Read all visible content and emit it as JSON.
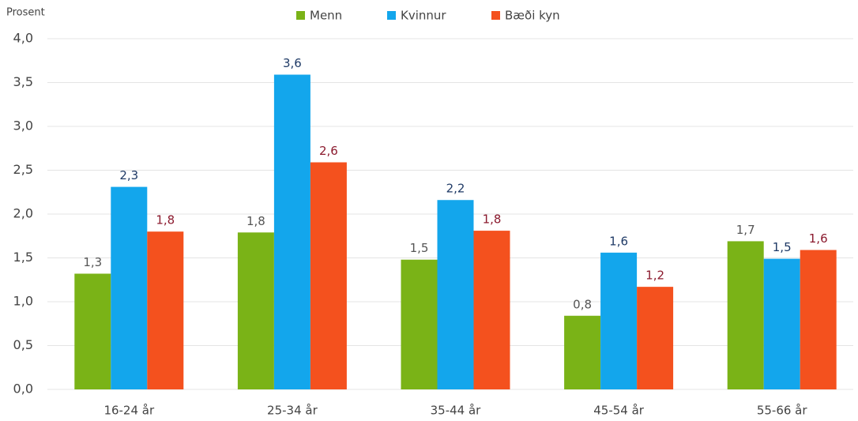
{
  "chart_data": {
    "type": "bar",
    "y_axis_label": "Prosent",
    "categories": [
      "16-24 år",
      "25-34 år",
      "35-44 år",
      "45-54 år",
      "55-66 år"
    ],
    "series": [
      {
        "name": "Menn",
        "color": "#7ab317",
        "label_color": "#555555",
        "values": [
          1.32,
          1.79,
          1.48,
          0.84,
          1.69
        ],
        "value_labels": [
          "1,3",
          "1,8",
          "1,5",
          "0,8",
          "1,7"
        ]
      },
      {
        "name": "Kvinnur",
        "color": "#13a6ec",
        "label_color": "#1f3a66",
        "values": [
          2.31,
          3.59,
          2.16,
          1.56,
          1.49
        ],
        "value_labels": [
          "2,3",
          "3,6",
          "2,2",
          "1,6",
          "1,5"
        ]
      },
      {
        "name": "Bæði kyn",
        "color": "#f4511e",
        "label_color": "#8b1a2e",
        "values": [
          1.8,
          2.59,
          1.81,
          1.17,
          1.59
        ],
        "value_labels": [
          "1,8",
          "2,6",
          "1,8",
          "1,2",
          "1,6"
        ]
      }
    ],
    "ylim": [
      0,
      4
    ],
    "yticks": [
      {
        "value": 0,
        "label": "0,0"
      },
      {
        "value": 0.5,
        "label": "0,5"
      },
      {
        "value": 1,
        "label": "1,0"
      },
      {
        "value": 1.5,
        "label": "1,5"
      },
      {
        "value": 2,
        "label": "2,0"
      },
      {
        "value": 2.5,
        "label": "2,5"
      },
      {
        "value": 3,
        "label": "3,0"
      },
      {
        "value": 3.5,
        "label": "3,5"
      },
      {
        "value": 4,
        "label": "4,0"
      }
    ],
    "grid": true,
    "legend": "top"
  }
}
